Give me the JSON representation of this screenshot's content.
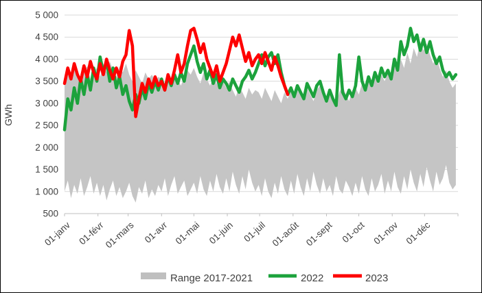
{
  "chart_data": {
    "type": "line",
    "title": "",
    "ylabel": "GWh",
    "ylim": [
      500,
      5000
    ],
    "grid": "horizontal",
    "legend_position": "bottom",
    "y_ticks": [
      "500",
      "1 000",
      "1 500",
      "2 000",
      "2 500",
      "3 000",
      "3 500",
      "4 000",
      "4 500",
      "5 000"
    ],
    "x_tick_labels": [
      "01-janv",
      "01-févr",
      "01-mars",
      "01-avr",
      "01-mai",
      "01-juin",
      "01-juil",
      "01-août",
      "01-sept",
      "01-oct",
      "01-nov",
      "01-déc"
    ],
    "x_tick_days": [
      0,
      31,
      59,
      90,
      120,
      151,
      181,
      212,
      243,
      273,
      304,
      334
    ],
    "x_domain_days": [
      0,
      365
    ],
    "sample_step_days": 3,
    "colors": {
      "band": "#C5C5C5",
      "band_legend": "#BFBFBF",
      "line_2022": "#1CA23C",
      "line_2023": "#FE0000",
      "gridline": "#D9D9D9",
      "axis": "#BFBFBF",
      "text": "#404040"
    },
    "series": [
      {
        "name": "Range 2017-2021",
        "type": "band",
        "color": "#C5C5C5",
        "max": [
          3600,
          3750,
          3500,
          3800,
          3650,
          3450,
          3700,
          3850,
          3550,
          3700,
          3800,
          3600,
          3900,
          3700,
          3950,
          3750,
          3600,
          3850,
          3700,
          3900,
          3650,
          3500,
          3750,
          3600,
          3450,
          3700,
          3550,
          3650,
          3500,
          3600,
          3550,
          3400,
          3650,
          3500,
          3700,
          3550,
          3400,
          3600,
          3750,
          3650,
          3800,
          3600,
          3450,
          3700,
          3550,
          3400,
          3600,
          3450,
          3300,
          3500,
          3350,
          3500,
          3300,
          3150,
          3400,
          3250,
          3100,
          3350,
          3200,
          3300,
          3250,
          3100,
          3350,
          3200,
          3050,
          3300,
          3150,
          3000,
          3250,
          3100,
          3300,
          3150,
          3400,
          3250,
          3100,
          3350,
          3200,
          3050,
          3300,
          3400,
          3250,
          3100,
          3300,
          3150,
          3000,
          3250,
          3400,
          3200,
          3050,
          3300,
          3350,
          3200,
          3450,
          3300,
          3550,
          3400,
          3600,
          3450,
          3650,
          3500,
          3700,
          3550,
          3900,
          3700,
          4000,
          3800,
          4150,
          3900,
          4250,
          4050,
          4400,
          4200,
          4350,
          4100,
          3900,
          4050,
          3800,
          3600,
          3750,
          3500,
          3350,
          3450
        ],
        "min": [
          1000,
          1250,
          850,
          1150,
          950,
          1300,
          900,
          1100,
          1350,
          950,
          1200,
          900,
          1150,
          800,
          1050,
          1250,
          900,
          1100,
          850,
          1000,
          1200,
          900,
          750,
          1100,
          950,
          1250,
          850,
          1050,
          900,
          1150,
          1000,
          1300,
          900,
          1150,
          1350,
          950,
          1100,
          1250,
          900,
          1050,
          1200,
          950,
          1350,
          1050,
          900,
          1250,
          1000,
          1400,
          1100,
          950,
          1300,
          1000,
          1450,
          1150,
          950,
          1350,
          1050,
          1500,
          1200,
          1000,
          1150,
          900,
          1300,
          1000,
          850,
          1200,
          950,
          1350,
          1050,
          900,
          1250,
          950,
          1400,
          1100,
          900,
          1300,
          1000,
          1450,
          1150,
          950,
          1300,
          1000,
          1150,
          900,
          1350,
          1050,
          950,
          1250,
          1100,
          900,
          1200,
          950,
          1350,
          1050,
          900,
          1300,
          1000,
          1150,
          1400,
          950,
          1250,
          1000,
          1450,
          1100,
          950,
          1350,
          1050,
          1500,
          1200,
          1000,
          1400,
          1100,
          1550,
          1250,
          1000,
          1450,
          1150,
          1300,
          1600,
          1200,
          1050,
          1150
        ]
      },
      {
        "name": "2022",
        "type": "line",
        "color": "#1CA23C",
        "values": [
          2400,
          3100,
          2850,
          3350,
          3000,
          3550,
          3200,
          3650,
          3300,
          3800,
          3500,
          4050,
          3700,
          3950,
          3500,
          3800,
          3350,
          3600,
          3200,
          3400,
          3050,
          2850,
          3200,
          3000,
          3350,
          3100,
          3450,
          3250,
          3500,
          3300,
          3550,
          3300,
          3600,
          3400,
          3650,
          3450,
          3700,
          3500,
          3900,
          4100,
          4300,
          3950,
          3700,
          3900,
          3550,
          3750,
          3450,
          3650,
          3350,
          3550,
          3450,
          3300,
          3550,
          3400,
          3250,
          3500,
          3600,
          3750,
          3550,
          3700,
          3900,
          4100,
          3850,
          4050,
          4150,
          3900,
          4100,
          3700,
          3400,
          3200,
          3350,
          3150,
          3400,
          3250,
          3100,
          3450,
          3300,
          3150,
          3400,
          3500,
          3250,
          3050,
          3300,
          3100,
          2950,
          4100,
          3250,
          3100,
          3300,
          3150,
          3400,
          4050,
          3500,
          3300,
          3600,
          3400,
          3700,
          3500,
          3800,
          3600,
          3750,
          3550,
          4000,
          3750,
          4400,
          4100,
          4300,
          4700,
          4400,
          4550,
          4200,
          4450,
          4150,
          4400,
          4100,
          3900,
          4050,
          3750,
          3600,
          3700,
          3550,
          3650
        ]
      },
      {
        "name": "2023",
        "type": "line",
        "color": "#FE0000",
        "values": [
          3450,
          3800,
          3550,
          3900,
          3650,
          3500,
          3850,
          3600,
          3950,
          3700,
          3550,
          3900,
          3650,
          4000,
          3750,
          3550,
          3800,
          3600,
          3950,
          4100,
          4650,
          4300,
          2700,
          3100,
          3450,
          3250,
          3550,
          3350,
          3600,
          3400,
          3500,
          3300,
          3650,
          3450,
          3750,
          4100,
          3700,
          3900,
          4300,
          4650,
          4700,
          4450,
          4150,
          4350,
          4000,
          3800,
          3600,
          3850,
          3500,
          3700,
          3900,
          4200,
          4500,
          4300,
          4550,
          4250,
          3950,
          4150,
          3850,
          4000,
          4100,
          3900,
          4150,
          3950,
          3750,
          4050,
          3850,
          3600,
          3400,
          3200
        ]
      }
    ],
    "legend": [
      {
        "label": "Range 2017-2021",
        "swatch": "band",
        "color": "#BFBFBF"
      },
      {
        "label": "2022",
        "swatch": "line",
        "color": "#1CA23C"
      },
      {
        "label": "2023",
        "swatch": "line",
        "color": "#FE0000"
      }
    ]
  }
}
